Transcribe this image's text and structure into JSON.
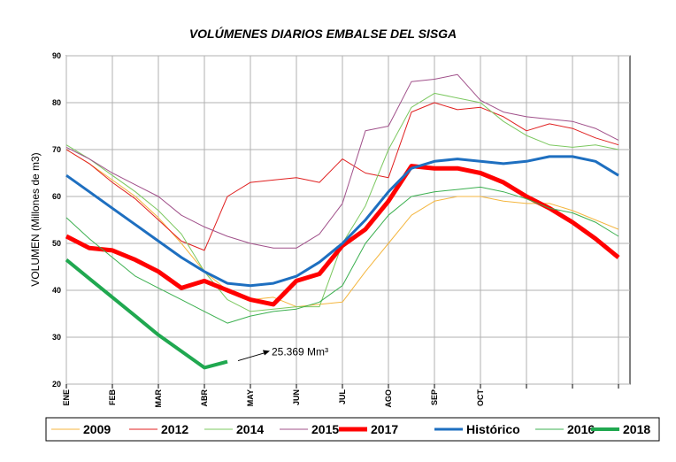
{
  "chart_data": {
    "type": "line",
    "title": "VOLÚMENES DIARIOS EMBALSE DEL SISGA",
    "y_label": "VOLUMEN (Millones de m3)",
    "x": [
      0,
      0.5,
      1,
      1.5,
      2,
      2.5,
      3,
      3.5,
      4,
      4.5,
      5,
      5.5,
      6,
      6.5,
      7,
      7.5,
      8,
      8.5,
      9,
      9.5,
      10,
      10.5,
      11,
      11.5,
      12
    ],
    "xlim": [
      0,
      12.25
    ],
    "xticks": [
      {
        "value": 0,
        "label": "ENE"
      },
      {
        "value": 1,
        "label": "FEB"
      },
      {
        "value": 2,
        "label": "MAR"
      },
      {
        "value": 3,
        "label": "ABR"
      },
      {
        "value": 4,
        "label": "MAY"
      },
      {
        "value": 5,
        "label": "JUN"
      },
      {
        "value": 6,
        "label": "JUL"
      },
      {
        "value": 7,
        "label": "AGO"
      },
      {
        "value": 8,
        "label": "SEP"
      },
      {
        "value": 9,
        "label": "OCT"
      },
      {
        "value": 10,
        "label": null
      },
      {
        "value": 11,
        "label": null
      },
      {
        "value": 12,
        "label": null
      }
    ],
    "ylim": [
      20,
      90
    ],
    "yticks": [
      20,
      30,
      40,
      50,
      60,
      70,
      80,
      90
    ],
    "grid": true,
    "legend": "bottom",
    "series": [
      {
        "name": "2009",
        "color": "#f4b63f",
        "width": 1,
        "values": [
          70,
          67,
          63.5,
          60,
          55.5,
          50,
          44,
          40,
          38,
          38.5,
          36.5,
          37,
          37.5,
          44,
          50,
          56,
          59,
          60,
          60,
          59,
          58.5,
          58.5,
          57,
          55,
          53
        ]
      },
      {
        "name": "2012",
        "color": "#e02020",
        "width": 1,
        "values": [
          70,
          67,
          63,
          59.5,
          55,
          50.5,
          48.5,
          60,
          63,
          63.5,
          64,
          63,
          68,
          65,
          64,
          78,
          80,
          78.5,
          79,
          77,
          74,
          75.5,
          74.5,
          72.5,
          71
        ]
      },
      {
        "name": "2014",
        "color": "#7cc860",
        "width": 1,
        "values": [
          71,
          68,
          64.5,
          61,
          57,
          52,
          44,
          38,
          35.5,
          36,
          36.5,
          36.5,
          50,
          58,
          70,
          79,
          82,
          81,
          80,
          76,
          73,
          71,
          70.5,
          71,
          70
        ]
      },
      {
        "name": "2015",
        "color": "#a0508a",
        "width": 1,
        "values": [
          70.5,
          68,
          65,
          62.5,
          60,
          56,
          53.5,
          51.5,
          50,
          49,
          49,
          52,
          58.5,
          74,
          75,
          84.5,
          85,
          86,
          80.5,
          78,
          77,
          76.5,
          76,
          74.5,
          72
        ]
      },
      {
        "name": "2017",
        "color": "#ff0000",
        "width": 5,
        "values": [
          51.5,
          49,
          48.5,
          46.5,
          44,
          40.5,
          42,
          40,
          38,
          37,
          42,
          43.5,
          49.5,
          53,
          59,
          66.5,
          66,
          66,
          65,
          63,
          60,
          57.5,
          54.5,
          51,
          47
        ]
      },
      {
        "name": "Histórico",
        "color": "#1e6fc0",
        "width": 3,
        "values": [
          64.5,
          61,
          57.5,
          54,
          50.5,
          47,
          44,
          41.5,
          41,
          41.5,
          43,
          46,
          50,
          55,
          61,
          66,
          67.5,
          68,
          67.5,
          67,
          67.5,
          68.5,
          68.5,
          67.5,
          64.5
        ]
      },
      {
        "name": "2016",
        "color": "#3cb050",
        "width": 1,
        "values": [
          55.5,
          51,
          47,
          43,
          40.5,
          38,
          35.5,
          33,
          34.5,
          35.5,
          36,
          37.5,
          41,
          50,
          56,
          60,
          61,
          61.5,
          62,
          61,
          59.5,
          57.5,
          56.5,
          54.5,
          51.5
        ]
      },
      {
        "name": "2018",
        "color": "#20a850",
        "width": 4,
        "values": [
          46.5,
          42.5,
          38.5,
          34.5,
          30.5,
          27,
          23.5,
          24.8,
          null,
          null,
          null,
          null,
          null,
          null,
          null,
          null,
          null,
          null,
          null,
          null,
          null,
          null,
          null,
          null,
          null
        ]
      }
    ],
    "annotation": "25.369 Mm³"
  }
}
